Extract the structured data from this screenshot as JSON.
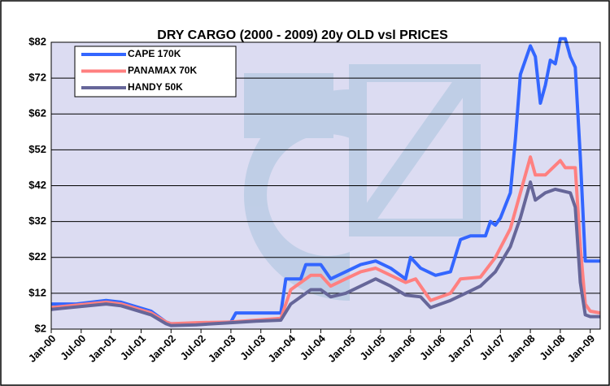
{
  "chart_data": {
    "type": "line",
    "title": "DRY CARGO (2000 - 2009) 20y OLD vsl PRICES",
    "xlim": [
      "2000-01",
      "2009-03"
    ],
    "xticks": [
      {
        "value": "2000-01",
        "label": "Jan-00"
      },
      {
        "value": "2000-07",
        "label": "Jul-00"
      },
      {
        "value": "2001-01",
        "label": "Jan-01"
      },
      {
        "value": "2001-07",
        "label": "Jul-01"
      },
      {
        "value": "2002-01",
        "label": "Jan-02"
      },
      {
        "value": "2002-07",
        "label": "Jul-02"
      },
      {
        "value": "2003-01",
        "label": "Jan-03"
      },
      {
        "value": "2003-07",
        "label": "Jul-03"
      },
      {
        "value": "2004-01",
        "label": "Jan-04"
      },
      {
        "value": "2004-07",
        "label": "Jul-04"
      },
      {
        "value": "2005-01",
        "label": "Jan-05"
      },
      {
        "value": "2005-07",
        "label": "Jul-05"
      },
      {
        "value": "2006-01",
        "label": "Jan-06"
      },
      {
        "value": "2006-07",
        "label": "Jul-06"
      },
      {
        "value": "2007-01",
        "label": "Jan-07"
      },
      {
        "value": "2007-07",
        "label": "Jul-07"
      },
      {
        "value": "2008-01",
        "label": "Jan-08"
      },
      {
        "value": "2008-07",
        "label": "Jul-08"
      },
      {
        "value": "2009-01",
        "label": "Jan-09"
      }
    ],
    "ylim": [
      2,
      82
    ],
    "yticks": [
      {
        "value": 2,
        "label": "$2"
      },
      {
        "value": 12,
        "label": "$12"
      },
      {
        "value": 22,
        "label": "$22"
      },
      {
        "value": 32,
        "label": "$32"
      },
      {
        "value": 42,
        "label": "$42"
      },
      {
        "value": 52,
        "label": "$52"
      },
      {
        "value": 62,
        "label": "$62"
      },
      {
        "value": 72,
        "label": "$72"
      },
      {
        "value": 82,
        "label": "$82"
      }
    ],
    "grid": true,
    "legend": "upper left",
    "series": [
      {
        "name": "CAPE 170K",
        "color": "#3366ff",
        "x": [
          "2000-01",
          "2000-06",
          "2000-12",
          "2001-03",
          "2001-09",
          "2001-12",
          "2002-01",
          "2002-06",
          "2003-01",
          "2003-02",
          "2003-09",
          "2003-11",
          "2003-12",
          "2004-03",
          "2004-04",
          "2004-07",
          "2004-09",
          "2004-12",
          "2005-03",
          "2005-06",
          "2005-09",
          "2005-12",
          "2006-01",
          "2006-03",
          "2006-06",
          "2006-09",
          "2006-11",
          "2007-01",
          "2007-04",
          "2007-05",
          "2007-06",
          "2007-07",
          "2007-09",
          "2007-10",
          "2007-11",
          "2008-01",
          "2008-02",
          "2008-03",
          "2008-04",
          "2008-05",
          "2008-06",
          "2008-07",
          "2008-08",
          "2008-09",
          "2008-10",
          "2008-11",
          "2008-12",
          "2009-01",
          "2009-03"
        ],
        "values": [
          9,
          9,
          10,
          9.5,
          7,
          4,
          3.5,
          3.5,
          4,
          6.5,
          6.5,
          6.5,
          16,
          16,
          20,
          20,
          16,
          18,
          20,
          21,
          19,
          16,
          22,
          19,
          17,
          18,
          27,
          28,
          28,
          32,
          31,
          33,
          40,
          55,
          73,
          81,
          78,
          65,
          70,
          77,
          76,
          83,
          83,
          78,
          75,
          50,
          21,
          21,
          21
        ]
      },
      {
        "name": "PANAMAX 70K",
        "color": "#ff8080",
        "x": [
          "2000-01",
          "2000-12",
          "2001-03",
          "2001-09",
          "2001-12",
          "2002-01",
          "2002-06",
          "2003-01",
          "2003-06",
          "2003-11",
          "2004-01",
          "2004-05",
          "2004-07",
          "2004-09",
          "2004-12",
          "2005-03",
          "2005-06",
          "2005-09",
          "2005-12",
          "2006-02",
          "2006-05",
          "2006-09",
          "2006-11",
          "2007-03",
          "2007-06",
          "2007-09",
          "2007-11",
          "2008-01",
          "2008-02",
          "2008-04",
          "2008-07",
          "2008-08",
          "2008-10",
          "2008-11",
          "2008-12",
          "2009-01",
          "2009-03"
        ],
        "values": [
          8,
          9.5,
          9,
          6.5,
          4,
          3.5,
          3.8,
          4,
          4.5,
          5,
          13,
          17,
          17,
          14,
          16,
          18,
          19,
          17,
          15,
          16,
          10,
          12,
          16,
          16.5,
          22,
          30,
          40,
          50,
          45,
          45,
          49,
          47,
          47,
          25,
          9,
          7,
          6.5
        ]
      },
      {
        "name": "HANDY 50K",
        "color": "#666699",
        "x": [
          "2000-01",
          "2000-12",
          "2001-03",
          "2001-09",
          "2001-12",
          "2002-01",
          "2002-06",
          "2003-01",
          "2003-06",
          "2003-11",
          "2004-01",
          "2004-05",
          "2004-07",
          "2004-09",
          "2004-12",
          "2005-03",
          "2005-06",
          "2005-09",
          "2005-12",
          "2006-03",
          "2006-05",
          "2006-09",
          "2006-12",
          "2007-03",
          "2007-06",
          "2007-09",
          "2007-11",
          "2008-01",
          "2008-02",
          "2008-04",
          "2008-06",
          "2008-09",
          "2008-10",
          "2008-11",
          "2008-12",
          "2009-01",
          "2009-03"
        ],
        "values": [
          7.5,
          9,
          8.5,
          6,
          3.5,
          3,
          3.2,
          3.8,
          4.2,
          4.5,
          9,
          13,
          13,
          11,
          12,
          14,
          16,
          14,
          11.5,
          11,
          8,
          10,
          12,
          14,
          18,
          25,
          33,
          43,
          38,
          40,
          41,
          40,
          36,
          15,
          6,
          5.5,
          5.5
        ]
      }
    ]
  }
}
